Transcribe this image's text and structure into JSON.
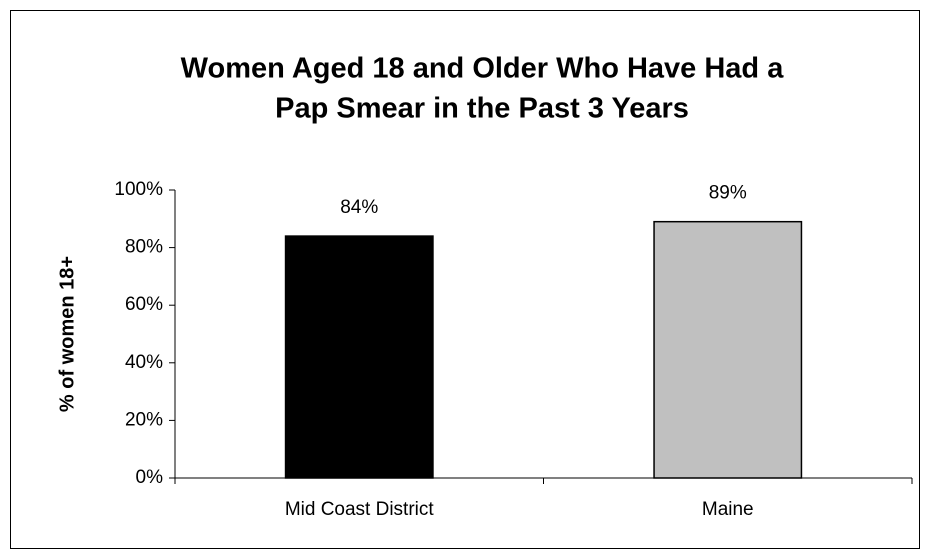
{
  "chart_data": {
    "type": "bar",
    "title": [
      "Women Aged 18 and Older Who Have Had a",
      "Pap Smear in the Past 3 Years"
    ],
    "y_label": "% of women 18+",
    "categories": [
      "Mid Coast District",
      "Maine"
    ],
    "values": [
      84,
      89
    ],
    "value_labels": [
      "84%",
      "89%"
    ],
    "colors": [
      "#000000",
      "#c0c0c0"
    ],
    "ylim": [
      0,
      100
    ],
    "yticks": [
      {
        "value": 0,
        "label": "0%"
      },
      {
        "value": 20,
        "label": "20%"
      },
      {
        "value": 40,
        "label": "40%"
      },
      {
        "value": 60,
        "label": "60%"
      },
      {
        "value": 80,
        "label": "80%"
      },
      {
        "value": 100,
        "label": "100%"
      }
    ],
    "grid": false
  }
}
